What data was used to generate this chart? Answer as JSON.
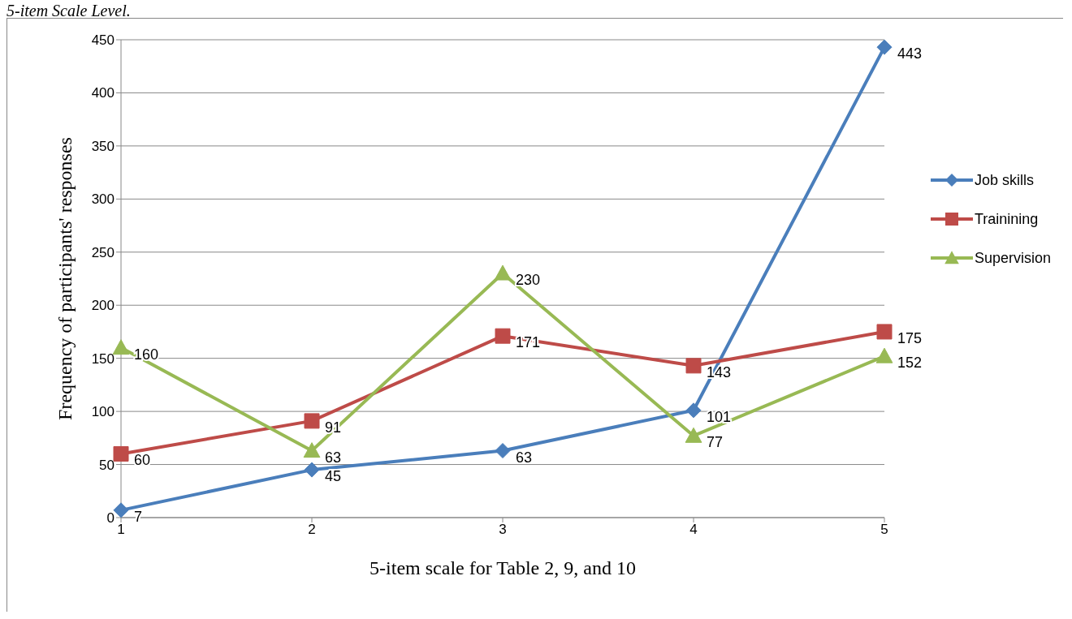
{
  "chart_data": {
    "type": "line",
    "title": "5-item Scale Level.",
    "xlabel": "5-item scale for Table 2, 9, and 10",
    "ylabel": "Frequency of participants' responses",
    "categories": [
      "1",
      "2",
      "3",
      "4",
      "5"
    ],
    "series": [
      {
        "name": "Job skills",
        "color": "#4a7ebb",
        "marker": "diamond",
        "values": [
          7,
          45,
          63,
          101,
          443
        ]
      },
      {
        "name": "Trainining",
        "color": "#be4b48",
        "marker": "square",
        "values": [
          60,
          91,
          171,
          143,
          175
        ]
      },
      {
        "name": "Supervision",
        "color": "#98b954",
        "marker": "triangle",
        "values": [
          160,
          63,
          230,
          77,
          152
        ]
      }
    ],
    "ylim": [
      0,
      450
    ],
    "yticks": [
      0,
      50,
      100,
      150,
      200,
      250,
      300,
      350,
      400,
      450
    ],
    "grid": "y",
    "legend": "right",
    "data_labels": true
  }
}
